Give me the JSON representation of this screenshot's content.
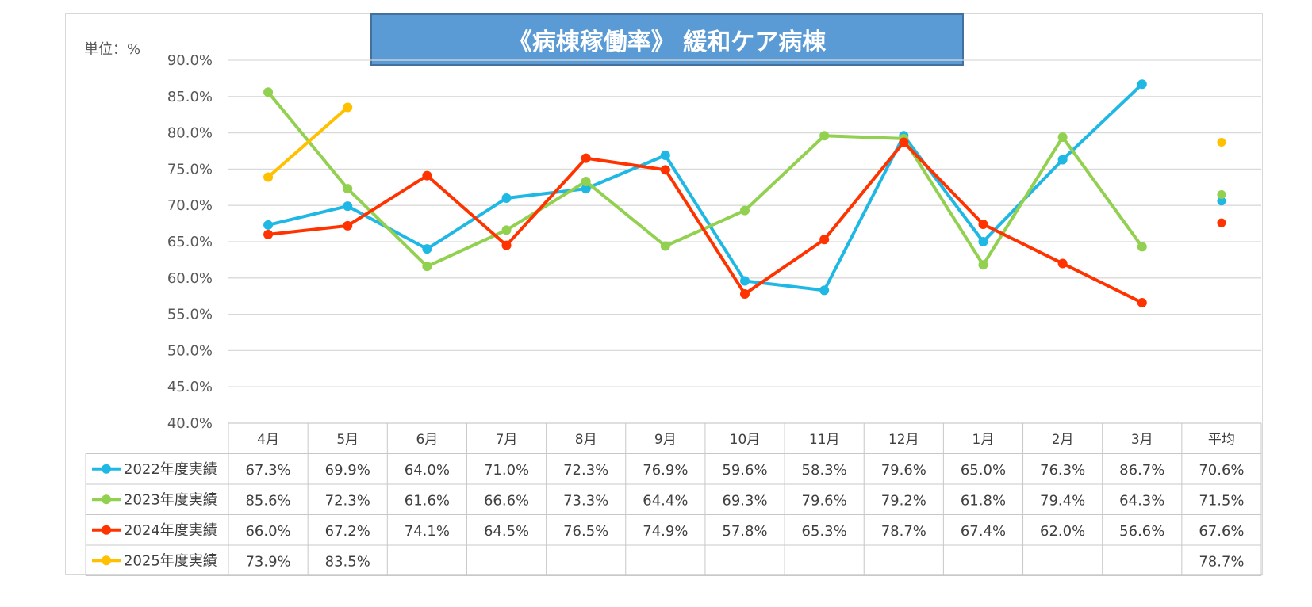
{
  "title": "《病棟稼働率》 緩和ケア病棟",
  "unit_label": "単位：%",
  "chart_data": {
    "type": "line",
    "categories": [
      "4月",
      "5月",
      "6月",
      "7月",
      "8月",
      "9月",
      "10月",
      "11月",
      "12月",
      "1月",
      "2月",
      "3月"
    ],
    "average_label": "平均",
    "ylim": [
      40,
      90
    ],
    "yticks": [
      "40.0%",
      "45.0%",
      "50.0%",
      "55.0%",
      "60.0%",
      "65.0%",
      "70.0%",
      "75.0%",
      "80.0%",
      "85.0%",
      "90.0%"
    ],
    "grid": true,
    "legend": "data-table",
    "series": [
      {
        "name": "2022年度実績",
        "color": "#1fb8e4",
        "values": [
          67.3,
          69.9,
          64.0,
          71.0,
          72.3,
          76.9,
          59.6,
          58.3,
          79.6,
          65.0,
          76.3,
          86.7
        ],
        "labels": [
          "67.3%",
          "69.9%",
          "64.0%",
          "71.0%",
          "72.3%",
          "76.9%",
          "59.6%",
          "58.3%",
          "79.6%",
          "65.0%",
          "76.3%",
          "86.7%"
        ],
        "average": 70.6,
        "average_label": "70.6%"
      },
      {
        "name": "2023年度実績",
        "color": "#92d050",
        "values": [
          85.6,
          72.3,
          61.6,
          66.6,
          73.3,
          64.4,
          69.3,
          79.6,
          79.2,
          61.8,
          79.4,
          64.3
        ],
        "labels": [
          "85.6%",
          "72.3%",
          "61.6%",
          "66.6%",
          "73.3%",
          "64.4%",
          "69.3%",
          "79.6%",
          "79.2%",
          "61.8%",
          "79.4%",
          "64.3%"
        ],
        "average": 71.5,
        "average_label": "71.5%"
      },
      {
        "name": "2024年度実績",
        "color": "#ff3300",
        "values": [
          66.0,
          67.2,
          74.1,
          64.5,
          76.5,
          74.9,
          57.8,
          65.3,
          78.7,
          67.4,
          62.0,
          56.6
        ],
        "labels": [
          "66.0%",
          "67.2%",
          "74.1%",
          "64.5%",
          "76.5%",
          "74.9%",
          "57.8%",
          "65.3%",
          "78.7%",
          "67.4%",
          "62.0%",
          "56.6%"
        ],
        "average": 67.6,
        "average_label": "67.6%"
      },
      {
        "name": "2025年度実績",
        "color": "#ffc000",
        "values": [
          73.9,
          83.5,
          null,
          null,
          null,
          null,
          null,
          null,
          null,
          null,
          null,
          null
        ],
        "labels": [
          "73.9%",
          "83.5%",
          "",
          "",
          "",
          "",
          "",
          "",
          "",
          "",
          "",
          ""
        ],
        "average": 78.7,
        "average_label": "78.7%"
      }
    ]
  }
}
